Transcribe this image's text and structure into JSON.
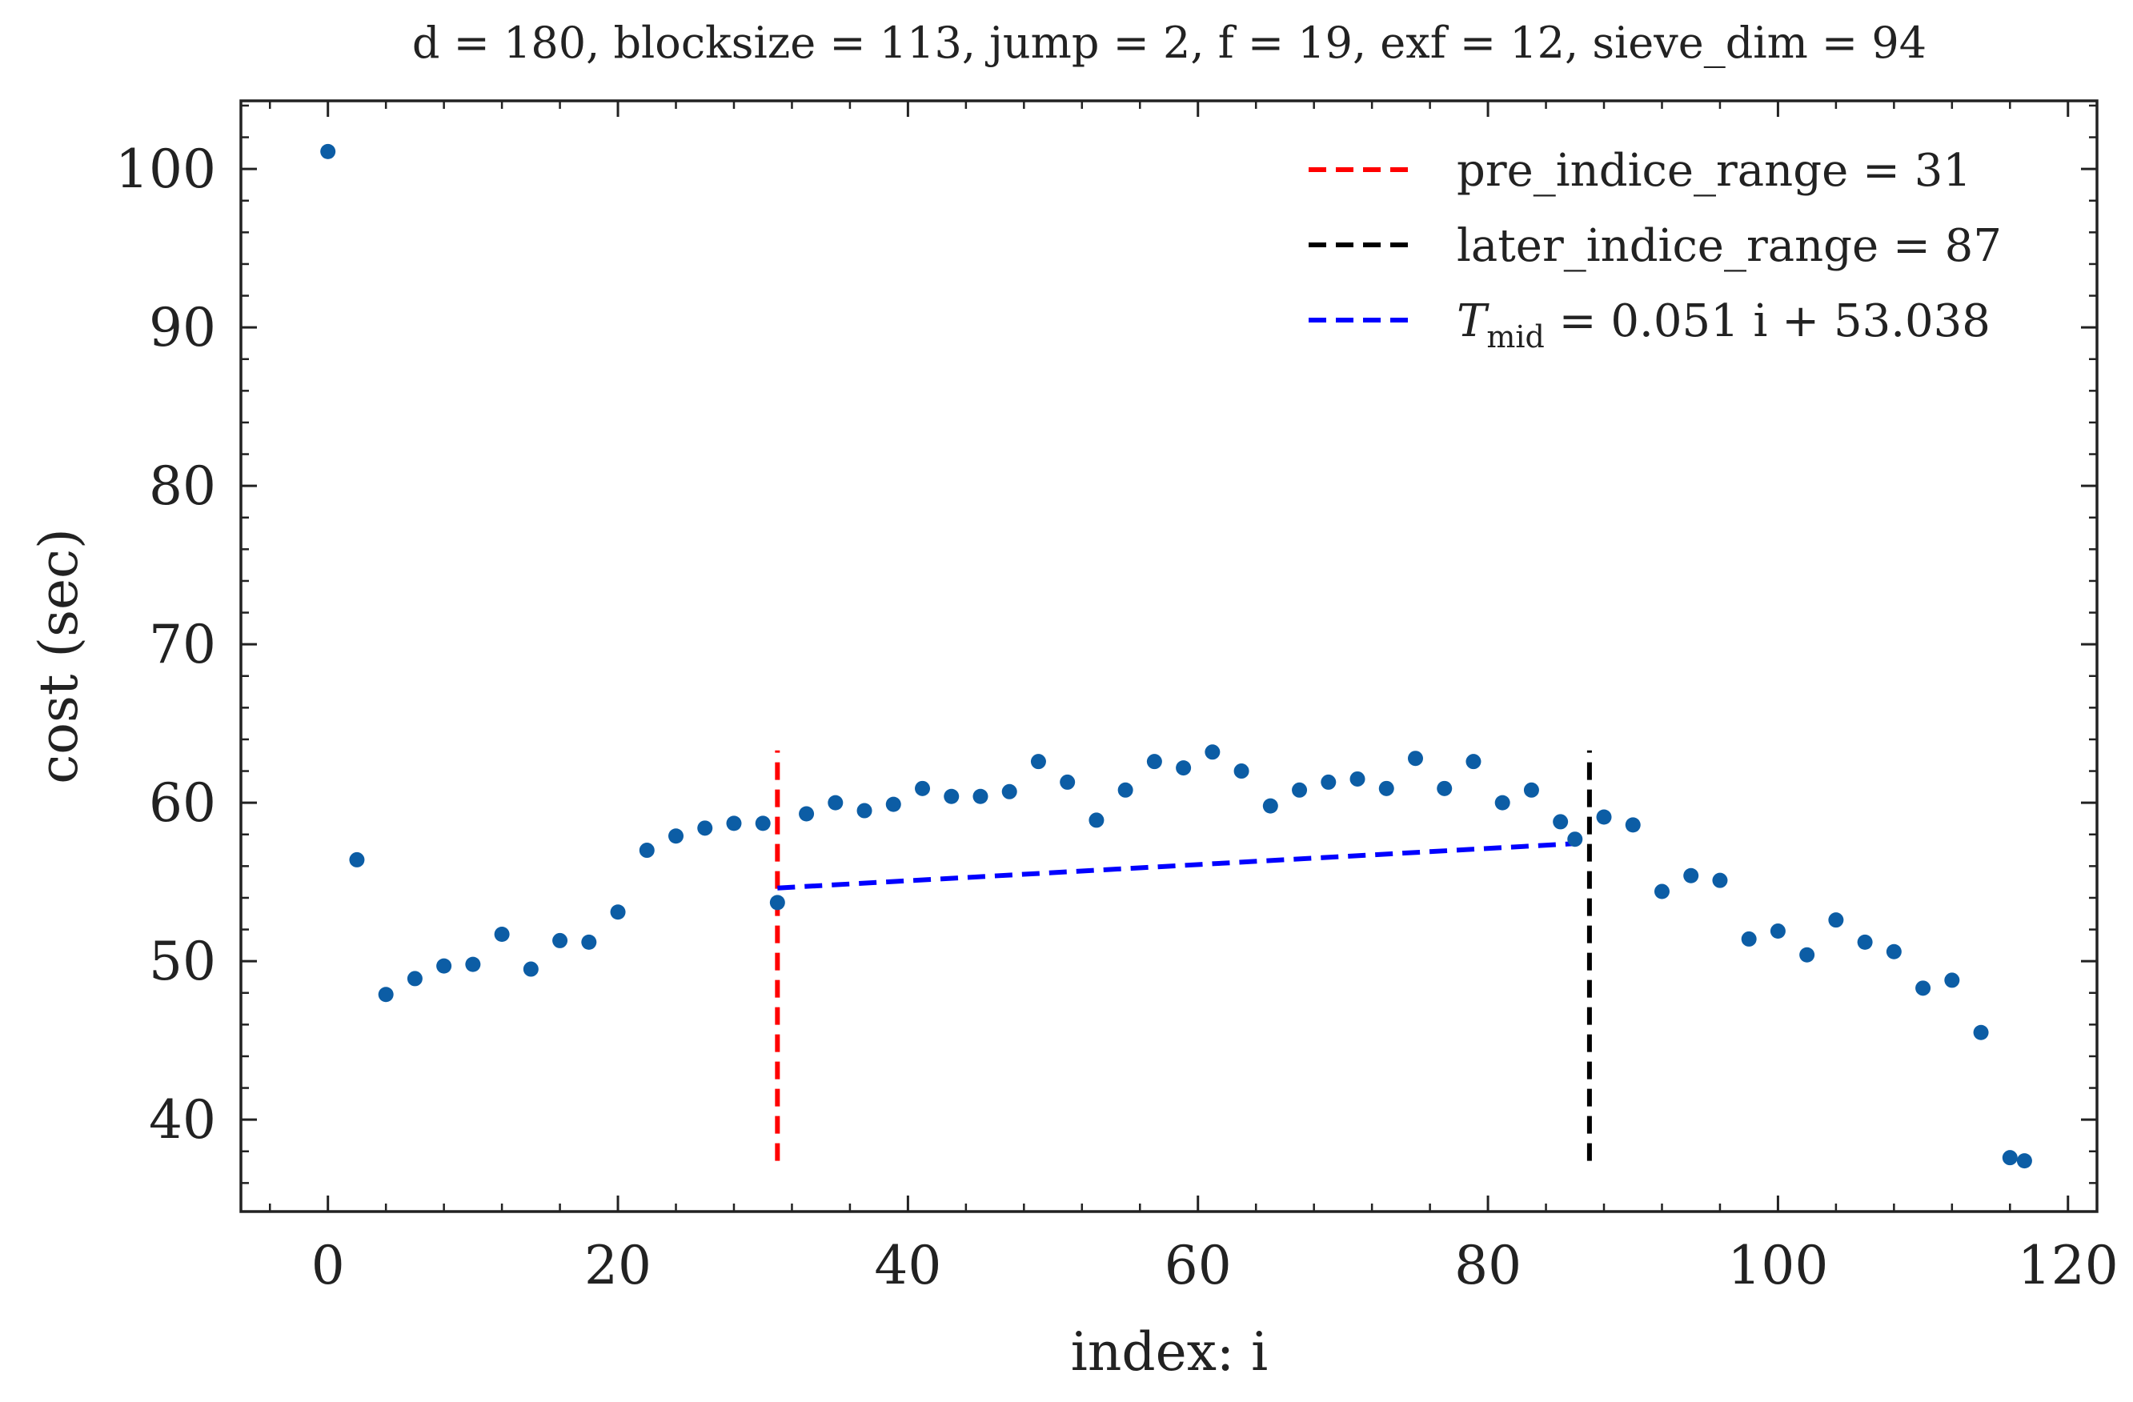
{
  "chart_data": {
    "type": "scatter",
    "title": "d = 180, blocksize = 113, jump = 2, f = 19, exf = 12, sieve_dim = 94",
    "xlabel": "index: i",
    "ylabel": "cost (sec)",
    "xlim": [
      -6,
      122
    ],
    "ylim": [
      34.2,
      104.3
    ],
    "xticks": [
      0,
      20,
      40,
      60,
      80,
      100,
      120
    ],
    "yticks": [
      40,
      50,
      60,
      70,
      80,
      90,
      100
    ],
    "grid": false,
    "legend_position": "top-right",
    "series": [
      {
        "color": "#0c5da5",
        "points": [
          [
            0,
            101.1
          ],
          [
            2,
            56.4
          ],
          [
            4,
            47.9
          ],
          [
            6,
            48.9
          ],
          [
            8,
            49.7
          ],
          [
            10,
            49.8
          ],
          [
            12,
            51.7
          ],
          [
            14,
            49.5
          ],
          [
            16,
            51.3
          ],
          [
            18,
            51.2
          ],
          [
            20,
            53.1
          ],
          [
            22,
            57.0
          ],
          [
            24,
            57.9
          ],
          [
            26,
            58.4
          ],
          [
            28,
            58.7
          ],
          [
            30,
            58.7
          ],
          [
            31,
            53.7
          ],
          [
            33,
            59.3
          ],
          [
            35,
            60.0
          ],
          [
            37,
            59.5
          ],
          [
            39,
            59.9
          ],
          [
            41,
            60.9
          ],
          [
            43,
            60.4
          ],
          [
            45,
            60.4
          ],
          [
            47,
            60.7
          ],
          [
            49,
            62.6
          ],
          [
            51,
            61.3
          ],
          [
            53,
            58.9
          ],
          [
            55,
            60.8
          ],
          [
            57,
            62.6
          ],
          [
            59,
            62.2
          ],
          [
            61,
            63.2
          ],
          [
            63,
            62.0
          ],
          [
            65,
            59.8
          ],
          [
            67,
            60.8
          ],
          [
            69,
            61.3
          ],
          [
            71,
            61.5
          ],
          [
            73,
            60.9
          ],
          [
            75,
            62.8
          ],
          [
            77,
            60.9
          ],
          [
            79,
            62.6
          ],
          [
            81,
            60.0
          ],
          [
            83,
            60.8
          ],
          [
            85,
            58.8
          ],
          [
            86,
            57.7
          ],
          [
            88,
            59.1
          ],
          [
            90,
            58.6
          ],
          [
            92,
            54.4
          ],
          [
            94,
            55.4
          ],
          [
            96,
            55.1
          ],
          [
            98,
            51.4
          ],
          [
            100,
            51.9
          ],
          [
            102,
            50.4
          ],
          [
            104,
            52.6
          ],
          [
            106,
            51.2
          ],
          [
            108,
            50.6
          ],
          [
            110,
            48.3
          ],
          [
            112,
            48.8
          ],
          [
            114,
            45.5
          ],
          [
            116,
            37.6
          ],
          [
            117,
            37.4
          ]
        ]
      }
    ],
    "lines": [
      {
        "label": "pre_indice_range = 31",
        "color": "#ff0000",
        "dash": true,
        "kind": "vertical",
        "x": 31,
        "y_range": [
          37.4,
          63.3
        ]
      },
      {
        "label": "later_indice_range = 87",
        "color": "#000000",
        "dash": true,
        "kind": "vertical",
        "x": 87,
        "y_range": [
          37.4,
          63.3
        ]
      },
      {
        "label_main": "T",
        "label_sub": "mid",
        "label_rest": " = 0.051 i + 53.038",
        "color": "#0000ff",
        "dash": true,
        "kind": "segment",
        "x_range": [
          31,
          86
        ],
        "slope": 0.051,
        "intercept": 53.038
      }
    ]
  }
}
